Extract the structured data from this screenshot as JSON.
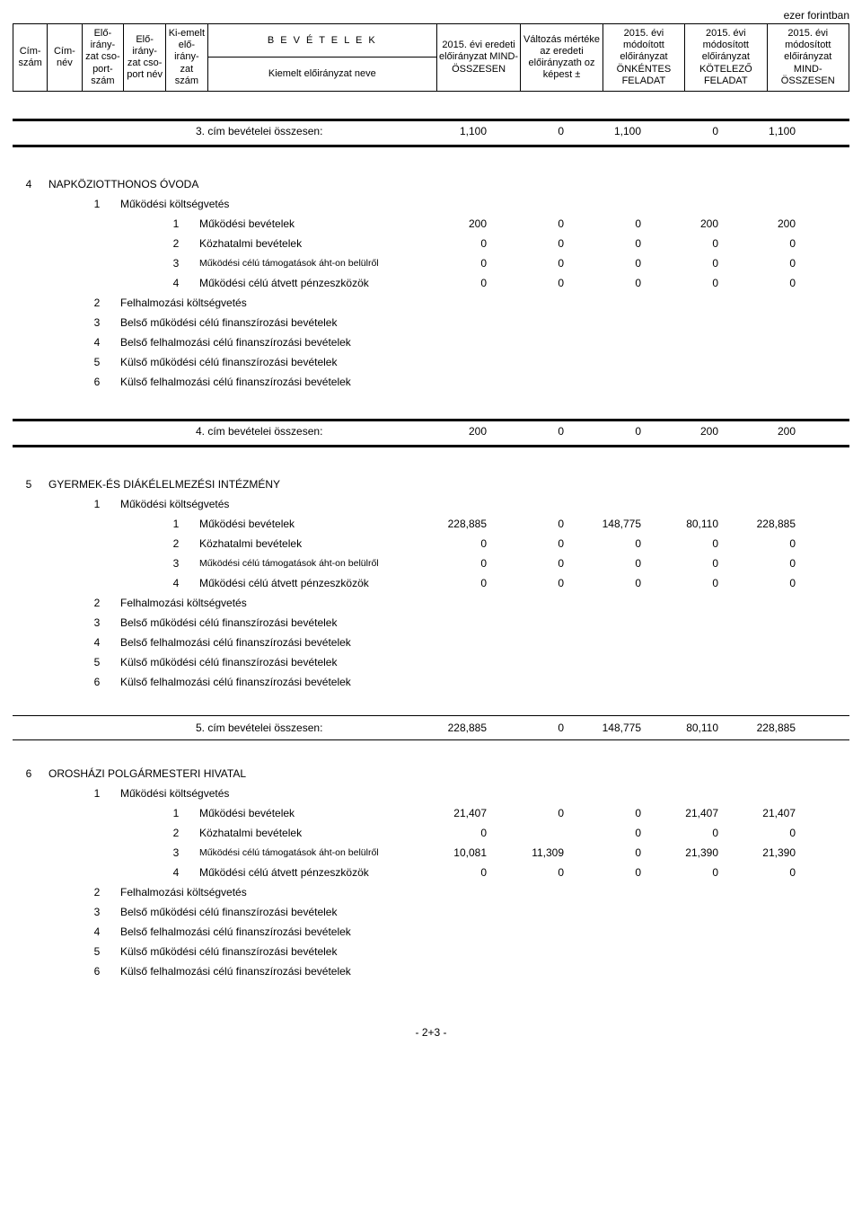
{
  "unit_label": "ezer forintban",
  "header": {
    "cimszam": "Cím-szám",
    "cimnev": "Cím-név",
    "eloi_cs_szam": "Elő-irány-zat cso-port-szám",
    "eloi_cs_nev": "Elő-irány-zat cso-port név",
    "kiemelt": "Ki-emelt elő-irány-zat szám",
    "bev_title": "B E V É T E L E K",
    "bev_sub": "Kiemelt előirányzat neve",
    "v1": "2015. évi eredeti előirányzat MIND-ÖSSZESEN",
    "v2": "Változás mértéke az eredeti előirányzath oz képest ±",
    "v3": "2015. évi módoított előirányzat ÖNKÉNTES FELADAT",
    "v4": "2015. évi módosított előirányzat KÖTELEZŐ FELADAT",
    "v5": "2015. évi módosított előirányzat MIND-ÖSSZESEN"
  },
  "summary3": {
    "label": "3. cím bevételei összesen:",
    "v1": "1,100",
    "v2": "0",
    "v3": "1,100",
    "v4": "0",
    "v5": "1,100"
  },
  "sec4": {
    "idx": "4",
    "title": "NAPKÖZIOTTHONOS ÓVODA",
    "g1": {
      "idx": "1",
      "label": "Működési költségvetés"
    },
    "r1": {
      "idx": "1",
      "label": "Működési bevételek",
      "v1": "200",
      "v2": "0",
      "v3": "0",
      "v4": "200",
      "v5": "200"
    },
    "r2": {
      "idx": "2",
      "label": "Közhatalmi bevételek",
      "v1": "0",
      "v2": "0",
      "v3": "0",
      "v4": "0",
      "v5": "0"
    },
    "r3": {
      "idx": "3",
      "label": "Működési célú támogatások áht-on belülről",
      "v1": "0",
      "v2": "0",
      "v3": "0",
      "v4": "0",
      "v5": "0"
    },
    "r4": {
      "idx": "4",
      "label": "Működési célú átvett pénzeszközök",
      "v1": "0",
      "v2": "0",
      "v3": "0",
      "v4": "0",
      "v5": "0"
    },
    "g2": {
      "idx": "2",
      "label": "Felhalmozási költségvetés"
    },
    "g3": {
      "idx": "3",
      "label": "Belső működési célú finanszírozási bevételek"
    },
    "g4": {
      "idx": "4",
      "label": "Belső felhalmozási célú finanszírozási bevételek"
    },
    "g5": {
      "idx": "5",
      "label": "Külső működési célú finanszírozási bevételek"
    },
    "g6": {
      "idx": "6",
      "label": "Külső felhalmozási célú finanszírozási bevételek"
    }
  },
  "summary4": {
    "label": "4. cím bevételei összesen:",
    "v1": "200",
    "v2": "0",
    "v3": "0",
    "v4": "200",
    "v5": "200"
  },
  "sec5": {
    "idx": "5",
    "title": "GYERMEK-ÉS DIÁKÉLELMEZÉSI INTÉZMÉNY",
    "g1": {
      "idx": "1",
      "label": "Működési költségvetés"
    },
    "r1": {
      "idx": "1",
      "label": "Működési bevételek",
      "v1": "228,885",
      "v2": "0",
      "v3": "148,775",
      "v4": "80,110",
      "v5": "228,885"
    },
    "r2": {
      "idx": "2",
      "label": "Közhatalmi bevételek",
      "v1": "0",
      "v2": "0",
      "v3": "0",
      "v4": "0",
      "v5": "0"
    },
    "r3": {
      "idx": "3",
      "label": "Működési célú támogatások áht-on belülről",
      "v1": "0",
      "v2": "0",
      "v3": "0",
      "v4": "0",
      "v5": "0"
    },
    "r4": {
      "idx": "4",
      "label": "Működési célú átvett pénzeszközök",
      "v1": "0",
      "v2": "0",
      "v3": "0",
      "v4": "0",
      "v5": "0"
    },
    "g2": {
      "idx": "2",
      "label": "Felhalmozási költségvetés"
    },
    "g3": {
      "idx": "3",
      "label": "Belső működési célú finanszírozási bevételek"
    },
    "g4": {
      "idx": "4",
      "label": "Belső felhalmozási célú finanszírozási bevételek"
    },
    "g5": {
      "idx": "5",
      "label": "Külső működési célú finanszírozási bevételek"
    },
    "g6": {
      "idx": "6",
      "label": "Külső felhalmozási célú finanszírozási bevételek"
    }
  },
  "summary5": {
    "label": "5. cím bevételei összesen:",
    "v1": "228,885",
    "v2": "0",
    "v3": "148,775",
    "v4": "80,110",
    "v5": "228,885"
  },
  "sec6": {
    "idx": "6",
    "title": "OROSHÁZI POLGÁRMESTERI HIVATAL",
    "g1": {
      "idx": "1",
      "label": "Működési költségvetés"
    },
    "r1": {
      "idx": "1",
      "label": "Működési bevételek",
      "v1": "21,407",
      "v2": "0",
      "v3": "0",
      "v4": "21,407",
      "v5": "21,407"
    },
    "r2": {
      "idx": "2",
      "label": "Közhatalmi bevételek",
      "v1": "0",
      "v2": "0",
      "v3": "0",
      "v4": "0",
      "v5": "0"
    },
    "r3": {
      "idx": "3",
      "label": "Működési célú támogatások áht-on belülről",
      "v1": "10,081",
      "v2": "11,309",
      "v3": "0",
      "v4": "21,390",
      "v5": "21,390"
    },
    "r4": {
      "idx": "4",
      "label": "Működési célú átvett pénzeszközök",
      "v1": "0",
      "v2": "0",
      "v3": "0",
      "v4": "0",
      "v5": "0"
    },
    "g2": {
      "idx": "2",
      "label": "Felhalmozási költségvetés"
    },
    "g3": {
      "idx": "3",
      "label": "Belső működési célú finanszírozási bevételek"
    },
    "g4": {
      "idx": "4",
      "label": "Belső felhalmozási célú finanszírozási bevételek"
    },
    "g5": {
      "idx": "5",
      "label": "Külső működési célú finanszírozási bevételek"
    },
    "g6": {
      "idx": "6",
      "label": "Külső felhalmozási célú finanszírozási bevételek"
    }
  },
  "footer": "- 2+3 -"
}
